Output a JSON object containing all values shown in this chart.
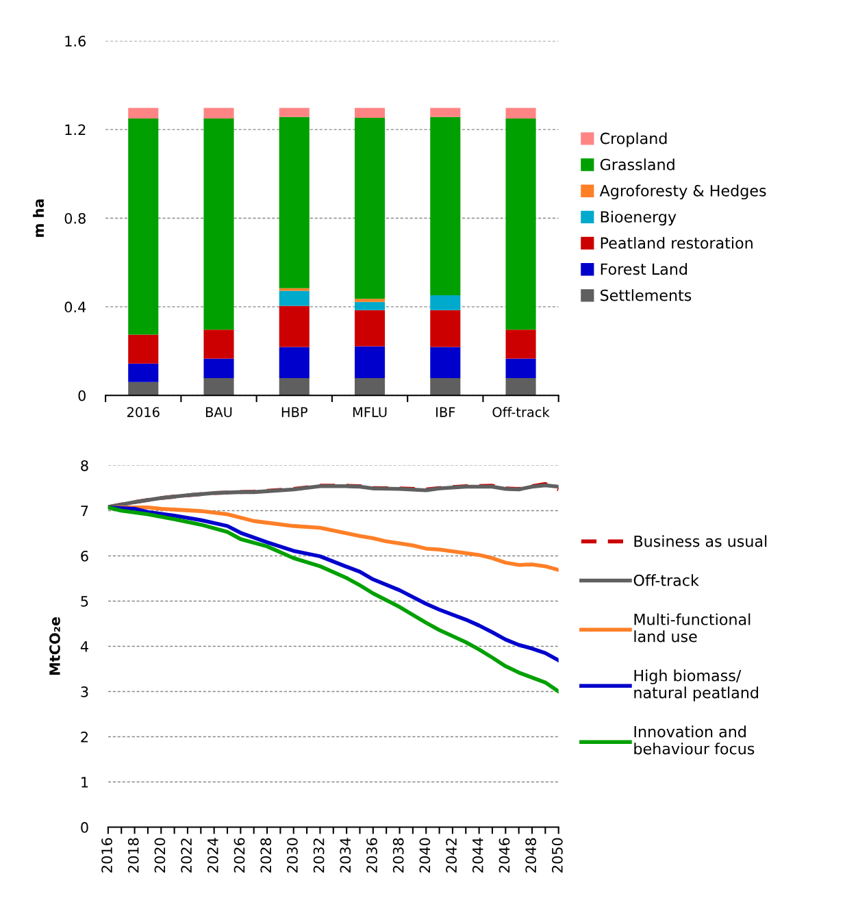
{
  "chart_data": [
    {
      "type": "bar",
      "stacked": true,
      "ylabel": "m ha",
      "categories": [
        "2016",
        "BAU",
        "HBP",
        "MFLU",
        "IBF",
        "Off-track"
      ],
      "ylim": [
        0,
        1.6
      ],
      "yticks": [
        0,
        0.4,
        0.8,
        1.2,
        1.6
      ],
      "grid": "y",
      "legend": "right",
      "series": [
        {
          "name": "Settlements",
          "color": "#5f5f5f",
          "values": [
            0.06,
            0.078,
            0.078,
            0.078,
            0.078,
            0.078
          ]
        },
        {
          "name": "Forest Land",
          "color": "#0000cc",
          "values": [
            0.084,
            0.088,
            0.141,
            0.144,
            0.141,
            0.088
          ]
        },
        {
          "name": "Peatland restoration",
          "color": "#cc0000",
          "values": [
            0.13,
            0.131,
            0.185,
            0.163,
            0.166,
            0.131
          ]
        },
        {
          "name": "Bioenergy",
          "color": "#00aacc",
          "values": [
            0,
            0,
            0.068,
            0.037,
            0.067,
            0
          ]
        },
        {
          "name": "Agroforesty & Hedges",
          "color": "#ff7f27",
          "values": [
            0,
            0,
            0.012,
            0.014,
            0,
            0
          ]
        },
        {
          "name": "Grassland",
          "color": "#00a000",
          "values": [
            0.976,
            0.953,
            0.773,
            0.817,
            0.805,
            0.953
          ]
        },
        {
          "name": "Cropland",
          "color": "#ff8585",
          "values": [
            0.048,
            0.048,
            0.041,
            0.045,
            0.041,
            0.048
          ]
        }
      ]
    },
    {
      "type": "line",
      "ylabel": "MtCO₂e",
      "xlim": [
        2016,
        2050
      ],
      "xticks": [
        2016,
        2018,
        2020,
        2022,
        2024,
        2026,
        2028,
        2030,
        2032,
        2034,
        2036,
        2038,
        2040,
        2042,
        2044,
        2046,
        2048,
        2050
      ],
      "ylim": [
        0,
        8
      ],
      "yticks": [
        0,
        1,
        2,
        3,
        4,
        5,
        6,
        7,
        8
      ],
      "grid": "y",
      "legend": "right",
      "marker": "none",
      "series": [
        {
          "name": "Business as usual",
          "color": "#cc0000",
          "line_style": "dashed",
          "x": [
            2016,
            2018,
            2020,
            2022,
            2024,
            2026,
            2027,
            2030,
            2032,
            2034,
            2035,
            2036,
            2038,
            2040,
            2041,
            2043,
            2045,
            2046,
            2047,
            2048,
            2049,
            2050
          ],
          "values": [
            7.08,
            7.19,
            7.28,
            7.34,
            7.39,
            7.41,
            7.42,
            7.48,
            7.55,
            7.55,
            7.54,
            7.5,
            7.49,
            7.47,
            7.5,
            7.54,
            7.55,
            7.49,
            7.48,
            7.54,
            7.59,
            7.47
          ]
        },
        {
          "name": "Off-track",
          "color": "#606060",
          "line_style": "solid",
          "x": [
            2016,
            2018,
            2020,
            2022,
            2024,
            2026,
            2027,
            2030,
            2032,
            2034,
            2035,
            2036,
            2038,
            2040,
            2041,
            2043,
            2045,
            2046,
            2047,
            2048,
            2049,
            2050
          ],
          "values": [
            7.08,
            7.19,
            7.28,
            7.34,
            7.39,
            7.41,
            7.41,
            7.47,
            7.54,
            7.54,
            7.53,
            7.49,
            7.48,
            7.45,
            7.49,
            7.53,
            7.53,
            7.48,
            7.47,
            7.53,
            7.56,
            7.53
          ]
        },
        {
          "name": "Multi-functional\nland use",
          "color": "#ff7f27",
          "line_style": "solid",
          "x": [
            2016,
            2019,
            2020,
            2023,
            2025,
            2027,
            2030,
            2032,
            2034,
            2035,
            2036,
            2037,
            2039,
            2040,
            2041,
            2043,
            2044,
            2045,
            2046,
            2047,
            2048,
            2049,
            2050
          ],
          "values": [
            7.07,
            7.07,
            7.04,
            6.99,
            6.92,
            6.77,
            6.66,
            6.62,
            6.5,
            6.44,
            6.39,
            6.32,
            6.23,
            6.16,
            6.14,
            6.06,
            6.02,
            5.95,
            5.85,
            5.8,
            5.81,
            5.77,
            5.69
          ]
        },
        {
          "name": "High biomass/\nnatural peatland",
          "color": "#0000cc",
          "line_style": "solid",
          "x": [
            2016,
            2018,
            2019,
            2021,
            2023,
            2025,
            2026,
            2028,
            2030,
            2032,
            2034,
            2035,
            2036,
            2038,
            2040,
            2041,
            2043,
            2044,
            2045,
            2046,
            2047,
            2048,
            2049,
            2050
          ],
          "values": [
            7.07,
            7.04,
            6.97,
            6.89,
            6.79,
            6.66,
            6.51,
            6.3,
            6.11,
            5.99,
            5.76,
            5.65,
            5.48,
            5.24,
            4.94,
            4.81,
            4.59,
            4.46,
            4.31,
            4.15,
            4.03,
            3.95,
            3.85,
            3.69
          ]
        },
        {
          "name": "Innovation and\nbehaviour focus",
          "color": "#00a000",
          "line_style": "solid",
          "x": [
            2016,
            2017,
            2019,
            2021,
            2023,
            2025,
            2026,
            2028,
            2030,
            2032,
            2034,
            2035,
            2036,
            2038,
            2040,
            2041,
            2043,
            2044,
            2045,
            2046,
            2047,
            2048,
            2049,
            2050
          ],
          "values": [
            7.07,
            7.0,
            6.92,
            6.81,
            6.69,
            6.53,
            6.37,
            6.21,
            5.95,
            5.77,
            5.51,
            5.35,
            5.17,
            4.87,
            4.52,
            4.36,
            4.09,
            3.93,
            3.75,
            3.56,
            3.42,
            3.31,
            3.2,
            3.0
          ]
        }
      ]
    }
  ]
}
